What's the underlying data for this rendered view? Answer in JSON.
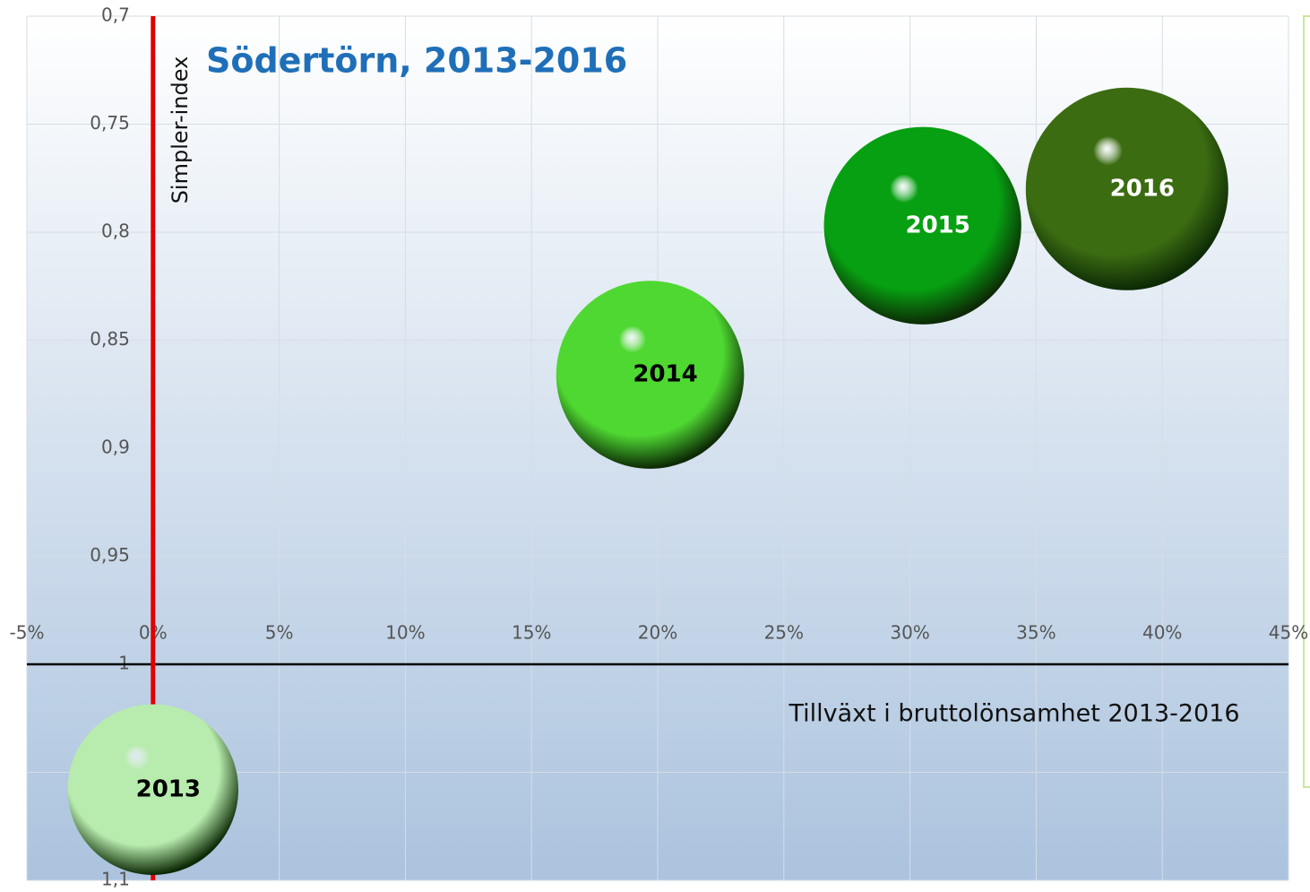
{
  "chart_data": {
    "type": "bubble",
    "title": "Södertörn, 2013-2016",
    "y_label": "Simpler-index",
    "x_label": "Tillväxt i bruttolönsamhet 2013-2016",
    "xlim": [
      -5,
      45
    ],
    "xticks": [
      {
        "value": -5,
        "label": "-5%"
      },
      {
        "value": 0,
        "label": "0%"
      },
      {
        "value": 5,
        "label": "5%"
      },
      {
        "value": 10,
        "label": "10%"
      },
      {
        "value": 15,
        "label": "15%"
      },
      {
        "value": 20,
        "label": "20%"
      },
      {
        "value": 25,
        "label": "25%"
      },
      {
        "value": 30,
        "label": "30%"
      },
      {
        "value": 35,
        "label": "35%"
      },
      {
        "value": 40,
        "label": "40%"
      },
      {
        "value": 45,
        "label": "45%"
      }
    ],
    "ylim": [
      0.7,
      1.1
    ],
    "y_inverted": true,
    "yticks": [
      {
        "value": 0.7,
        "label": "0,7"
      },
      {
        "value": 0.75,
        "label": "0,75"
      },
      {
        "value": 0.8,
        "label": "0,8"
      },
      {
        "value": 0.85,
        "label": "0,85"
      },
      {
        "value": 0.9,
        "label": "0,9"
      },
      {
        "value": 0.95,
        "label": "0,95"
      },
      1,
      {
        "value": 1.05,
        "label": "1,05"
      },
      {
        "value": 1.1,
        "label": "1,1"
      }
    ],
    "grid": true,
    "series": [
      {
        "name": "2013",
        "color": "#b8ecae",
        "label_color": "#000000",
        "x": [
          0
        ],
        "values": [
          1.058
        ],
        "sizes": [
          71
        ]
      },
      {
        "name": "2014",
        "color": "#4fd832",
        "label_color": "#000000",
        "x": [
          19.7
        ],
        "values": [
          0.866
        ],
        "sizes": [
          86
        ]
      },
      {
        "name": "2015",
        "color": "#07a012",
        "label_color": "#ffffff",
        "x": [
          30.5
        ],
        "values": [
          0.797
        ],
        "sizes": [
          95
        ]
      },
      {
        "name": "2016",
        "color": "#3c6c12",
        "label_color": "#ffffff",
        "x": [
          38.6
        ],
        "values": [
          0.78
        ],
        "sizes": [
          100
        ]
      }
    ]
  }
}
